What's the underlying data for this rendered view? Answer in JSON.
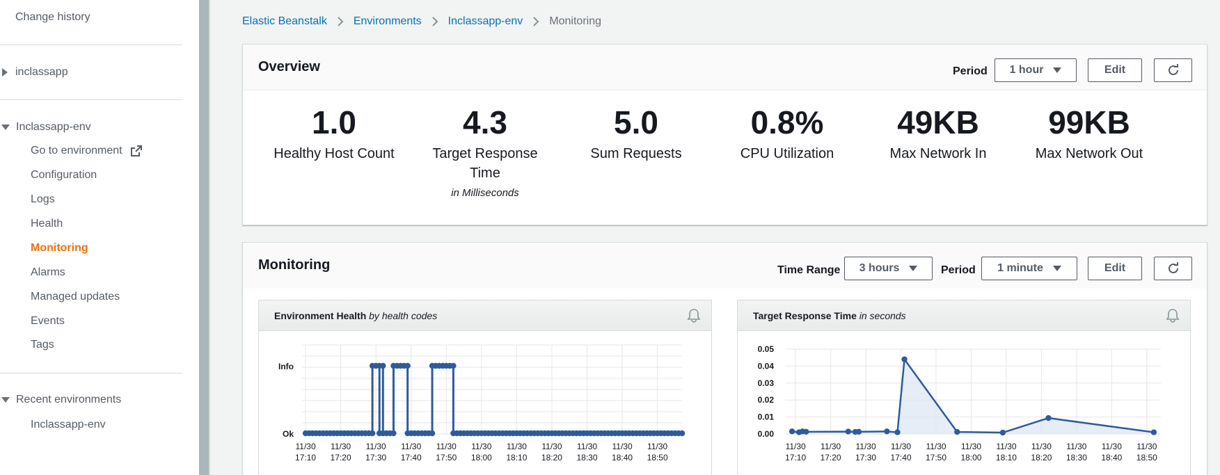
{
  "sidebar": {
    "change_history": "Change history",
    "app_name": "inclassapp",
    "env_name": "Inclassapp-env",
    "env_items": [
      {
        "label": "Go to environment"
      },
      {
        "label": "Configuration"
      },
      {
        "label": "Logs"
      },
      {
        "label": "Health"
      },
      {
        "label": "Monitoring",
        "active": true
      },
      {
        "label": "Alarms"
      },
      {
        "label": "Managed updates"
      },
      {
        "label": "Events"
      },
      {
        "label": "Tags"
      }
    ],
    "recent_title": "Recent environments",
    "recent_items": [
      "Inclassapp-env"
    ]
  },
  "breadcrumb": [
    "Elastic Beanstalk",
    "Environments",
    "Inclassapp-env",
    "Monitoring"
  ],
  "overview": {
    "title": "Overview",
    "period_label": "Period",
    "period_value": "1 hour",
    "edit_label": "Edit",
    "metrics": [
      {
        "value": "1.0",
        "label": "Healthy Host Count",
        "sub": ""
      },
      {
        "value": "4.3",
        "label": "Target Response Time",
        "sub": "in Milliseconds"
      },
      {
        "value": "5.0",
        "label": "Sum Requests",
        "sub": ""
      },
      {
        "value": "0.8%",
        "label": "CPU Utilization",
        "sub": ""
      },
      {
        "value": "49KB",
        "label": "Max Network In",
        "sub": ""
      },
      {
        "value": "99KB",
        "label": "Max Network Out",
        "sub": ""
      }
    ]
  },
  "monitoring": {
    "title": "Monitoring",
    "time_range_label": "Time Range",
    "time_range_value": "3 hours",
    "period_label": "Period",
    "period_value": "1 minute",
    "edit_label": "Edit"
  },
  "colors": {
    "accent": "#ec7211",
    "link": "#0073bb",
    "series": "#2e5b9a"
  },
  "chart_data": [
    {
      "type": "line",
      "title": "Environment Health",
      "subtitle": "by health codes",
      "x_ticks": [
        "11/30 17:10",
        "11/30 17:20",
        "11/30 17:30",
        "11/30 17:40",
        "11/30 17:50",
        "11/30 18:00",
        "11/30 18:10",
        "11/30 18:20",
        "11/30 18:30",
        "11/30 18:40",
        "11/30 18:50"
      ],
      "y_categories": [
        "Ok",
        "Info"
      ],
      "series": [
        {
          "segments": [
            {
              "from": "17:10",
              "to": "17:29",
              "level": "Ok"
            },
            {
              "from": "17:29",
              "to": "17:31",
              "level": "Info"
            },
            {
              "from": "17:31",
              "to": "17:32",
              "level": "Ok"
            },
            {
              "from": "17:32",
              "to": "17:32",
              "level": "Info"
            },
            {
              "from": "17:32",
              "to": "17:35",
              "level": "Ok"
            },
            {
              "from": "17:35",
              "to": "17:39",
              "level": "Info"
            },
            {
              "from": "17:39",
              "to": "17:46",
              "level": "Ok"
            },
            {
              "from": "17:46",
              "to": "17:52",
              "level": "Info"
            },
            {
              "from": "17:52",
              "to": "18:57",
              "level": "Ok"
            }
          ]
        }
      ],
      "grid": true
    },
    {
      "type": "line",
      "title": "Target Response Time",
      "subtitle": "in seconds",
      "x_ticks": [
        "11/30 17:10",
        "11/30 17:20",
        "11/30 17:30",
        "11/30 17:40",
        "11/30 17:50",
        "11/30 18:00",
        "11/30 18:10",
        "11/30 18:20",
        "11/30 18:30",
        "11/30 18:40",
        "11/30 18:50"
      ],
      "y_ticks": [
        "0.05",
        "0.04",
        "0.03",
        "0.02",
        "0.01",
        "0.00"
      ],
      "ylim": [
        0,
        0.05
      ],
      "series": [
        {
          "x": [
            "17:09",
            "17:11",
            "17:12",
            "17:13",
            "17:25",
            "17:27",
            "17:28",
            "17:36",
            "17:39",
            "17:41",
            "17:56",
            "18:09",
            "18:22",
            "18:52"
          ],
          "y": [
            0.0015,
            0.001,
            0.0015,
            0.0013,
            0.0014,
            0.0012,
            0.0013,
            0.0015,
            0.001,
            0.044,
            0.0012,
            0.0008,
            0.0094,
            0.001
          ]
        }
      ],
      "grid": true
    }
  ]
}
